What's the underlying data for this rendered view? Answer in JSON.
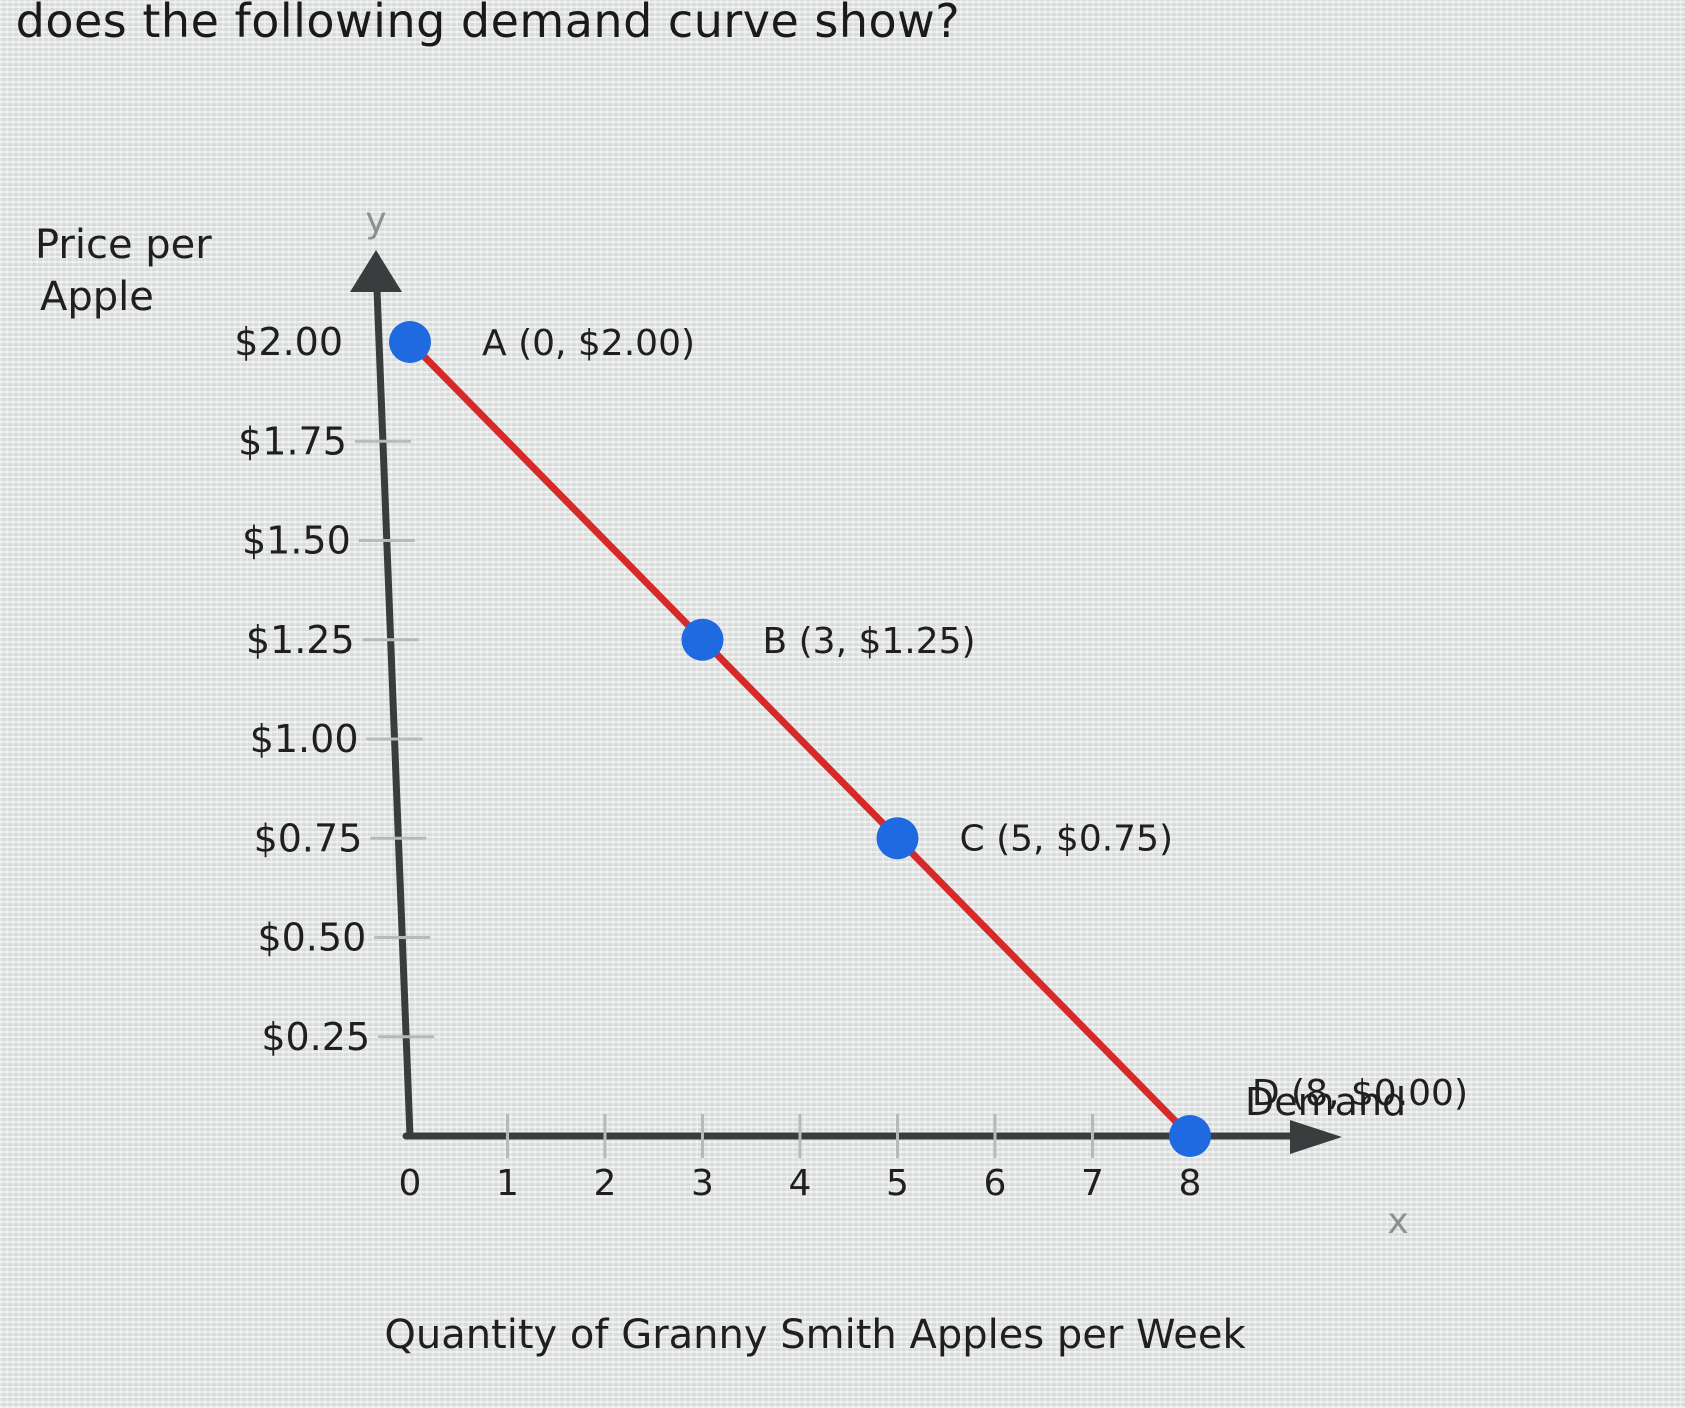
{
  "question": "t does the following demand curve show?",
  "chart_data": {
    "type": "line",
    "ylabel_lines": [
      "Price per",
      "Apple"
    ],
    "xlabel": "Quantity of Granny Smith Apples per Week",
    "y_axis_var": "y",
    "x_axis_var": "x",
    "xlim": [
      0,
      8
    ],
    "ylim": [
      0,
      2.0
    ],
    "x_ticks": [
      "0",
      "1",
      "2",
      "3",
      "4",
      "5",
      "6",
      "7",
      "8"
    ],
    "y_ticks": [
      {
        "value": 2.0,
        "label": "$2.00"
      },
      {
        "value": 1.75,
        "label": "$1.75"
      },
      {
        "value": 1.5,
        "label": "$1.50"
      },
      {
        "value": 1.25,
        "label": "$1.25"
      },
      {
        "value": 1.0,
        "label": "$1.00"
      },
      {
        "value": 0.75,
        "label": "$0.75"
      },
      {
        "value": 0.5,
        "label": "$0.50"
      },
      {
        "value": 0.25,
        "label": "$0.25"
      }
    ],
    "series": [
      {
        "name": "Demand",
        "color": "#d62a2a",
        "points": [
          {
            "x": 0,
            "y": 2.0,
            "label": "A (0, $2.00)"
          },
          {
            "x": 3,
            "y": 1.25,
            "label": "B (3, $1.25)"
          },
          {
            "x": 5,
            "y": 0.75,
            "label": "C (5, $0.75)"
          },
          {
            "x": 8,
            "y": 0.0,
            "label": "D (8, $0.00)"
          }
        ]
      }
    ],
    "marker_color": "#1f6ae0",
    "axis_color": "#3a3c3e",
    "grid": false
  }
}
